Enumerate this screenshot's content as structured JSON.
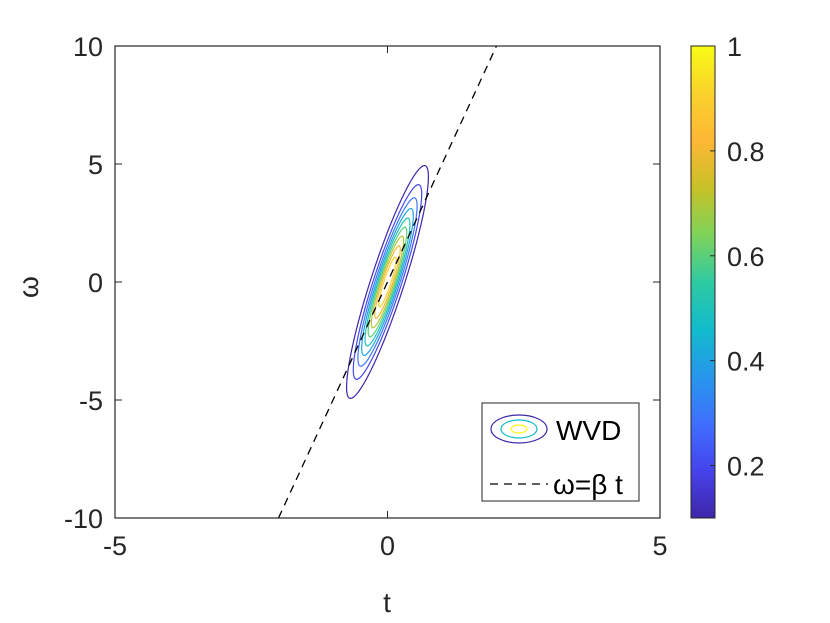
{
  "chart_data": {
    "type": "contour",
    "xlabel": "t",
    "ylabel": "ω",
    "xlim": [
      -5,
      5
    ],
    "ylim": [
      -10,
      10
    ],
    "xticks": [
      "-5",
      "0",
      "5"
    ],
    "yticks": [
      "-10",
      "-5",
      "0",
      "5",
      "10"
    ],
    "contour": {
      "center": [
        0,
        0
      ],
      "sigma_t": 0.15,
      "sigma_w": 2.3,
      "slope": 4,
      "levels": [
        0.1,
        0.2,
        0.3,
        0.4,
        0.5,
        0.6,
        0.7,
        0.8,
        0.9
      ]
    },
    "line": {
      "style": "dashed",
      "color": "#000000",
      "slope": 5,
      "x": [
        -2,
        2
      ],
      "y": [
        -10,
        10
      ]
    },
    "colorbar": {
      "ticks": [
        "0.2",
        "0.4",
        "0.6",
        "0.8",
        "1"
      ],
      "tick_values": [
        0.2,
        0.4,
        0.6,
        0.8,
        1.0
      ],
      "range": [
        0.1,
        1.0
      ],
      "colormap": "parula",
      "colors": [
        "#3e26a8",
        "#4643ec",
        "#3f6ffe",
        "#2797eb",
        "#12bbcc",
        "#2ecaa2",
        "#7fd359",
        "#c8c127",
        "#feb735",
        "#f9d22b",
        "#f9fb15"
      ]
    },
    "legend": {
      "position": "bottom-right",
      "entries": [
        "WVD",
        "ω=β t"
      ]
    }
  }
}
